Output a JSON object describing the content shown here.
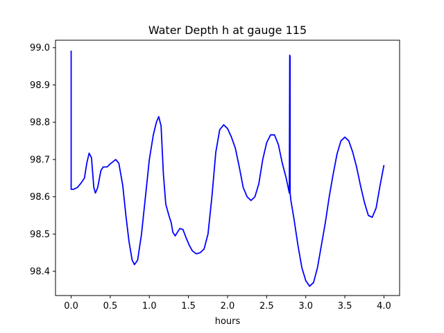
{
  "chart_data": {
    "type": "line",
    "title": "Water Depth h at gauge 115",
    "xlabel": "hours",
    "ylabel": "",
    "xlim": [
      -0.2,
      4.2
    ],
    "ylim": [
      98.335,
      99.02
    ],
    "xticks": [
      {
        "value": 0.0,
        "label": "0.0"
      },
      {
        "value": 0.5,
        "label": "0.5"
      },
      {
        "value": 1.0,
        "label": "1.0"
      },
      {
        "value": 1.5,
        "label": "1.5"
      },
      {
        "value": 2.0,
        "label": "2.0"
      },
      {
        "value": 2.5,
        "label": "2.5"
      },
      {
        "value": 3.0,
        "label": "3.0"
      },
      {
        "value": 3.5,
        "label": "3.5"
      },
      {
        "value": 4.0,
        "label": "4.0"
      }
    ],
    "yticks": [
      {
        "value": 98.4,
        "label": "98.4"
      },
      {
        "value": 98.5,
        "label": "98.5"
      },
      {
        "value": 98.6,
        "label": "98.6"
      },
      {
        "value": 98.7,
        "label": "98.7"
      },
      {
        "value": 98.8,
        "label": "98.8"
      },
      {
        "value": 98.9,
        "label": "98.9"
      },
      {
        "value": 99.0,
        "label": "99.0"
      }
    ],
    "grid": false,
    "legend": "none",
    "series": [
      {
        "color": "#0000ff",
        "points": [
          [
            0.0,
            98.992
          ],
          [
            0.0,
            98.62
          ],
          [
            0.03,
            98.62
          ],
          [
            0.08,
            98.625
          ],
          [
            0.12,
            98.635
          ],
          [
            0.17,
            98.65
          ],
          [
            0.2,
            98.69
          ],
          [
            0.23,
            98.717
          ],
          [
            0.26,
            98.705
          ],
          [
            0.29,
            98.625
          ],
          [
            0.31,
            98.61
          ],
          [
            0.34,
            98.625
          ],
          [
            0.38,
            98.67
          ],
          [
            0.41,
            98.68
          ],
          [
            0.46,
            98.68
          ],
          [
            0.51,
            98.69
          ],
          [
            0.57,
            98.7
          ],
          [
            0.61,
            98.69
          ],
          [
            0.66,
            98.63
          ],
          [
            0.7,
            98.55
          ],
          [
            0.74,
            98.48
          ],
          [
            0.78,
            98.43
          ],
          [
            0.81,
            98.418
          ],
          [
            0.85,
            98.43
          ],
          [
            0.9,
            98.5
          ],
          [
            0.95,
            98.6
          ],
          [
            1.0,
            98.7
          ],
          [
            1.05,
            98.765
          ],
          [
            1.09,
            98.8
          ],
          [
            1.12,
            98.815
          ],
          [
            1.15,
            98.79
          ],
          [
            1.18,
            98.66
          ],
          [
            1.21,
            98.58
          ],
          [
            1.25,
            98.55
          ],
          [
            1.28,
            98.53
          ],
          [
            1.3,
            98.505
          ],
          [
            1.33,
            98.495
          ],
          [
            1.36,
            98.505
          ],
          [
            1.39,
            98.515
          ],
          [
            1.43,
            98.512
          ],
          [
            1.47,
            98.49
          ],
          [
            1.51,
            98.47
          ],
          [
            1.55,
            98.455
          ],
          [
            1.6,
            98.447
          ],
          [
            1.65,
            98.45
          ],
          [
            1.7,
            98.46
          ],
          [
            1.75,
            98.5
          ],
          [
            1.8,
            98.6
          ],
          [
            1.85,
            98.72
          ],
          [
            1.9,
            98.78
          ],
          [
            1.95,
            98.793
          ],
          [
            2.0,
            98.783
          ],
          [
            2.05,
            98.76
          ],
          [
            2.1,
            98.73
          ],
          [
            2.15,
            98.68
          ],
          [
            2.2,
            98.625
          ],
          [
            2.25,
            98.6
          ],
          [
            2.3,
            98.59
          ],
          [
            2.35,
            98.6
          ],
          [
            2.4,
            98.635
          ],
          [
            2.45,
            98.7
          ],
          [
            2.5,
            98.745
          ],
          [
            2.55,
            98.766
          ],
          [
            2.6,
            98.766
          ],
          [
            2.65,
            98.74
          ],
          [
            2.7,
            98.69
          ],
          [
            2.75,
            98.65
          ],
          [
            2.79,
            98.61
          ],
          [
            2.795,
            98.98
          ],
          [
            2.8,
            98.975
          ],
          [
            2.8,
            98.61
          ],
          [
            2.81,
            98.59
          ],
          [
            2.85,
            98.54
          ],
          [
            2.9,
            98.47
          ],
          [
            2.95,
            98.41
          ],
          [
            3.0,
            98.375
          ],
          [
            3.05,
            98.36
          ],
          [
            3.1,
            98.37
          ],
          [
            3.15,
            98.41
          ],
          [
            3.2,
            98.47
          ],
          [
            3.25,
            98.53
          ],
          [
            3.3,
            98.6
          ],
          [
            3.35,
            98.66
          ],
          [
            3.4,
            98.715
          ],
          [
            3.45,
            98.75
          ],
          [
            3.5,
            98.76
          ],
          [
            3.55,
            98.75
          ],
          [
            3.6,
            98.72
          ],
          [
            3.65,
            98.68
          ],
          [
            3.7,
            98.63
          ],
          [
            3.75,
            98.585
          ],
          [
            3.8,
            98.55
          ],
          [
            3.85,
            98.545
          ],
          [
            3.9,
            98.57
          ],
          [
            3.95,
            98.63
          ],
          [
            4.0,
            98.685
          ]
        ]
      }
    ]
  }
}
